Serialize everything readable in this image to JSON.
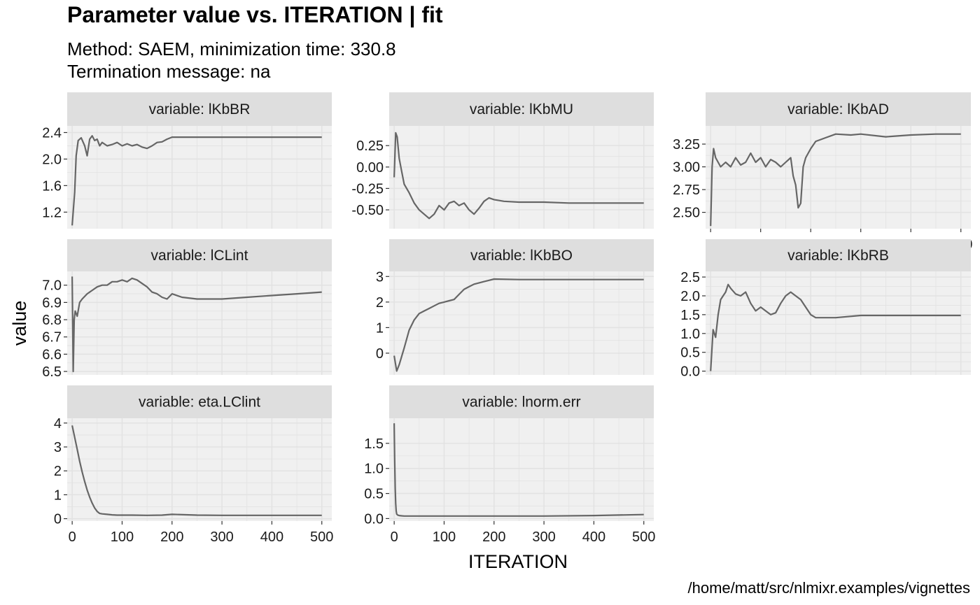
{
  "header": {
    "title": "Parameter value vs. ITERATION | fit",
    "subtitle_line1": "Method: SAEM, minimization time: 330.8",
    "subtitle_line2": "Termination message: na"
  },
  "caption": "/home/matt/src/nlmixr.examples/vignettes",
  "colors": {
    "panel_bg": "#f0f0f0",
    "strip_bg": "#dedede",
    "grid": "#e2e2e2",
    "line": "#666666"
  },
  "chart_data": {
    "type": "line",
    "xlabel": "ITERATION",
    "ylabel": "value",
    "xlim": [
      -10,
      520
    ],
    "x_ticks": [
      0,
      100,
      200,
      300,
      400,
      500
    ],
    "grid": true,
    "facets": [
      {
        "label": "variable: lKbBR",
        "ylim": [
          0.95,
          2.5
        ],
        "y_ticks": [
          1.2,
          1.6,
          2.0,
          2.4
        ],
        "y_tick_labels": [
          "1.2",
          "1.6",
          "2.0",
          "2.4"
        ],
        "series": {
          "x": [
            0,
            5,
            8,
            12,
            18,
            25,
            30,
            35,
            40,
            45,
            50,
            55,
            60,
            70,
            80,
            90,
            100,
            110,
            120,
            130,
            140,
            150,
            160,
            170,
            180,
            190,
            200,
            250,
            300,
            350,
            400,
            450,
            500
          ],
          "y": [
            1.0,
            1.5,
            2.05,
            2.28,
            2.32,
            2.2,
            2.05,
            2.3,
            2.35,
            2.28,
            2.3,
            2.2,
            2.25,
            2.2,
            2.22,
            2.25,
            2.2,
            2.23,
            2.2,
            2.22,
            2.18,
            2.16,
            2.2,
            2.25,
            2.26,
            2.3,
            2.33,
            2.33,
            2.33,
            2.33,
            2.33,
            2.33,
            2.33
          ]
        }
      },
      {
        "label": "variable: lKbMU",
        "ylim": [
          -0.72,
          0.48
        ],
        "y_ticks": [
          -0.5,
          -0.25,
          0.0,
          0.25
        ],
        "y_tick_labels": [
          "-0.50",
          "-0.25",
          "0.00",
          "0.25"
        ],
        "series": {
          "x": [
            0,
            3,
            6,
            10,
            15,
            20,
            30,
            40,
            50,
            60,
            70,
            80,
            90,
            100,
            110,
            120,
            130,
            140,
            150,
            160,
            170,
            180,
            190,
            200,
            220,
            250,
            300,
            350,
            400,
            450,
            500
          ],
          "y": [
            -0.12,
            0.4,
            0.35,
            0.1,
            -0.05,
            -0.2,
            -0.3,
            -0.42,
            -0.5,
            -0.55,
            -0.6,
            -0.55,
            -0.45,
            -0.5,
            -0.42,
            -0.4,
            -0.45,
            -0.42,
            -0.5,
            -0.55,
            -0.48,
            -0.4,
            -0.36,
            -0.38,
            -0.4,
            -0.41,
            -0.41,
            -0.42,
            -0.42,
            -0.42,
            -0.42
          ]
        }
      },
      {
        "label": "variable: lKbAD",
        "ylim": [
          2.32,
          3.45
        ],
        "y_ticks": [
          2.5,
          2.75,
          3.0,
          3.25
        ],
        "y_tick_labels": [
          "2.50",
          "2.75",
          "3.00",
          "3.25"
        ],
        "series": {
          "x": [
            0,
            3,
            6,
            10,
            15,
            20,
            30,
            40,
            50,
            60,
            70,
            80,
            90,
            100,
            110,
            120,
            130,
            140,
            150,
            160,
            165,
            170,
            175,
            180,
            185,
            190,
            200,
            210,
            220,
            230,
            250,
            280,
            300,
            350,
            400,
            450,
            500
          ],
          "y": [
            2.35,
            3.0,
            3.2,
            3.1,
            3.05,
            3.0,
            3.05,
            3.0,
            3.1,
            3.02,
            3.05,
            3.15,
            3.05,
            3.1,
            3.0,
            3.08,
            3.05,
            3.0,
            3.05,
            3.1,
            2.9,
            2.8,
            2.55,
            2.6,
            3.0,
            3.1,
            3.2,
            3.28,
            3.3,
            3.32,
            3.36,
            3.35,
            3.36,
            3.33,
            3.35,
            3.36,
            3.36
          ]
        }
      },
      {
        "label": "variable: lCLint",
        "ylim": [
          6.48,
          7.08
        ],
        "y_ticks": [
          6.5,
          6.6,
          6.7,
          6.8,
          6.9,
          7.0
        ],
        "y_tick_labels": [
          "6.5",
          "6.6",
          "6.7",
          "6.8",
          "6.9",
          "7.0"
        ],
        "series": {
          "x": [
            0,
            2,
            4,
            6,
            10,
            15,
            20,
            30,
            40,
            50,
            60,
            70,
            80,
            90,
            100,
            110,
            120,
            130,
            140,
            150,
            160,
            170,
            180,
            190,
            200,
            220,
            250,
            300,
            350,
            400,
            450,
            500
          ],
          "y": [
            7.05,
            6.5,
            6.8,
            6.85,
            6.82,
            6.9,
            6.92,
            6.95,
            6.97,
            6.99,
            7.0,
            7.0,
            7.02,
            7.02,
            7.03,
            7.02,
            7.04,
            7.03,
            7.01,
            6.99,
            6.96,
            6.95,
            6.93,
            6.92,
            6.95,
            6.93,
            6.92,
            6.92,
            6.93,
            6.94,
            6.95,
            6.96
          ]
        }
      },
      {
        "label": "variable: lKbBO",
        "ylim": [
          -0.85,
          3.2
        ],
        "y_ticks": [
          0,
          1,
          2,
          3
        ],
        "y_tick_labels": [
          "0",
          "1",
          "2",
          "3"
        ],
        "series": {
          "x": [
            0,
            5,
            10,
            20,
            30,
            40,
            50,
            60,
            70,
            80,
            90,
            100,
            110,
            120,
            130,
            140,
            150,
            160,
            170,
            180,
            190,
            200,
            250,
            300,
            350,
            400,
            450,
            500
          ],
          "y": [
            -0.1,
            -0.7,
            -0.45,
            0.2,
            0.9,
            1.3,
            1.55,
            1.65,
            1.75,
            1.85,
            1.95,
            2.0,
            2.05,
            2.1,
            2.3,
            2.5,
            2.6,
            2.7,
            2.75,
            2.8,
            2.85,
            2.9,
            2.88,
            2.88,
            2.88,
            2.88,
            2.88,
            2.88
          ]
        }
      },
      {
        "label": "variable: lKbRB",
        "ylim": [
          -0.1,
          2.65
        ],
        "y_ticks": [
          0.0,
          0.5,
          1.0,
          1.5,
          2.0,
          2.5
        ],
        "y_tick_labels": [
          "0.0",
          "0.5",
          "1.0",
          "1.5",
          "2.0",
          "2.5"
        ],
        "series": {
          "x": [
            0,
            5,
            10,
            15,
            20,
            25,
            30,
            35,
            40,
            50,
            60,
            70,
            80,
            90,
            100,
            110,
            120,
            130,
            140,
            150,
            160,
            170,
            180,
            190,
            200,
            210,
            250,
            300,
            350,
            400,
            450,
            500
          ],
          "y": [
            0.0,
            1.1,
            0.9,
            1.5,
            1.9,
            2.0,
            2.1,
            2.3,
            2.2,
            2.05,
            2.0,
            2.1,
            1.8,
            1.6,
            1.7,
            1.6,
            1.5,
            1.55,
            1.8,
            2.0,
            2.1,
            2.0,
            1.9,
            1.7,
            1.5,
            1.42,
            1.42,
            1.48,
            1.48,
            1.48,
            1.48,
            1.48
          ]
        }
      },
      {
        "label": "variable: eta.LClint",
        "ylim": [
          -0.1,
          4.2
        ],
        "y_ticks": [
          0,
          1,
          2,
          3,
          4
        ],
        "y_tick_labels": [
          "0",
          "1",
          "2",
          "3",
          "4"
        ],
        "series": {
          "x": [
            0,
            5,
            10,
            15,
            20,
            25,
            30,
            35,
            40,
            45,
            50,
            55,
            60,
            70,
            80,
            90,
            100,
            120,
            150,
            180,
            200,
            250,
            300,
            350,
            400,
            450,
            500
          ],
          "y": [
            3.9,
            3.4,
            2.9,
            2.4,
            1.95,
            1.55,
            1.2,
            0.9,
            0.65,
            0.45,
            0.3,
            0.22,
            0.2,
            0.18,
            0.16,
            0.15,
            0.15,
            0.15,
            0.14,
            0.15,
            0.18,
            0.15,
            0.14,
            0.14,
            0.14,
            0.14,
            0.14
          ]
        }
      },
      {
        "label": "variable: lnorm.err",
        "ylim": [
          -0.05,
          2.0
        ],
        "y_ticks": [
          0.0,
          0.5,
          1.0,
          1.5
        ],
        "y_tick_labels": [
          "0.0",
          "0.5",
          "1.0",
          "1.5"
        ],
        "series": {
          "x": [
            0,
            1,
            2,
            3,
            4,
            5,
            7,
            10,
            15,
            20,
            30,
            50,
            100,
            200,
            300,
            400,
            450,
            500
          ],
          "y": [
            1.9,
            1.2,
            0.6,
            0.3,
            0.15,
            0.09,
            0.07,
            0.06,
            0.055,
            0.05,
            0.05,
            0.05,
            0.05,
            0.05,
            0.05,
            0.06,
            0.07,
            0.08
          ]
        }
      }
    ]
  }
}
